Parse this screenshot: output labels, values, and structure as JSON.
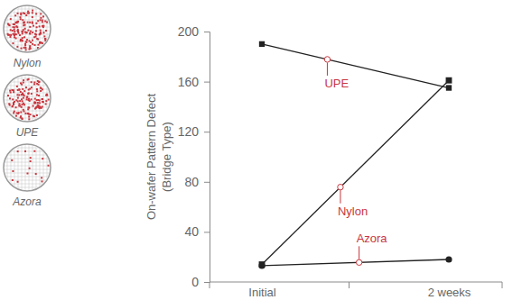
{
  "chart_data": {
    "type": "line",
    "ylabel": [
      "On-wafer Pattern Defect",
      "(Bridge Type)"
    ],
    "categories": [
      "Initial",
      "2 weeks"
    ],
    "series": [
      {
        "name": "UPE",
        "color": "#222222",
        "marker": "square",
        "values": [
          190,
          155
        ]
      },
      {
        "name": "Nylon",
        "color": "#222222",
        "marker": "diamond",
        "values": [
          14,
          161
        ]
      },
      {
        "name": "Azora",
        "color": "#222222",
        "marker": "circle",
        "values": [
          13,
          18
        ]
      }
    ],
    "ylim": [
      0,
      200
    ],
    "yticks": [
      0,
      40,
      80,
      120,
      160,
      200
    ],
    "grid": false
  }
}
